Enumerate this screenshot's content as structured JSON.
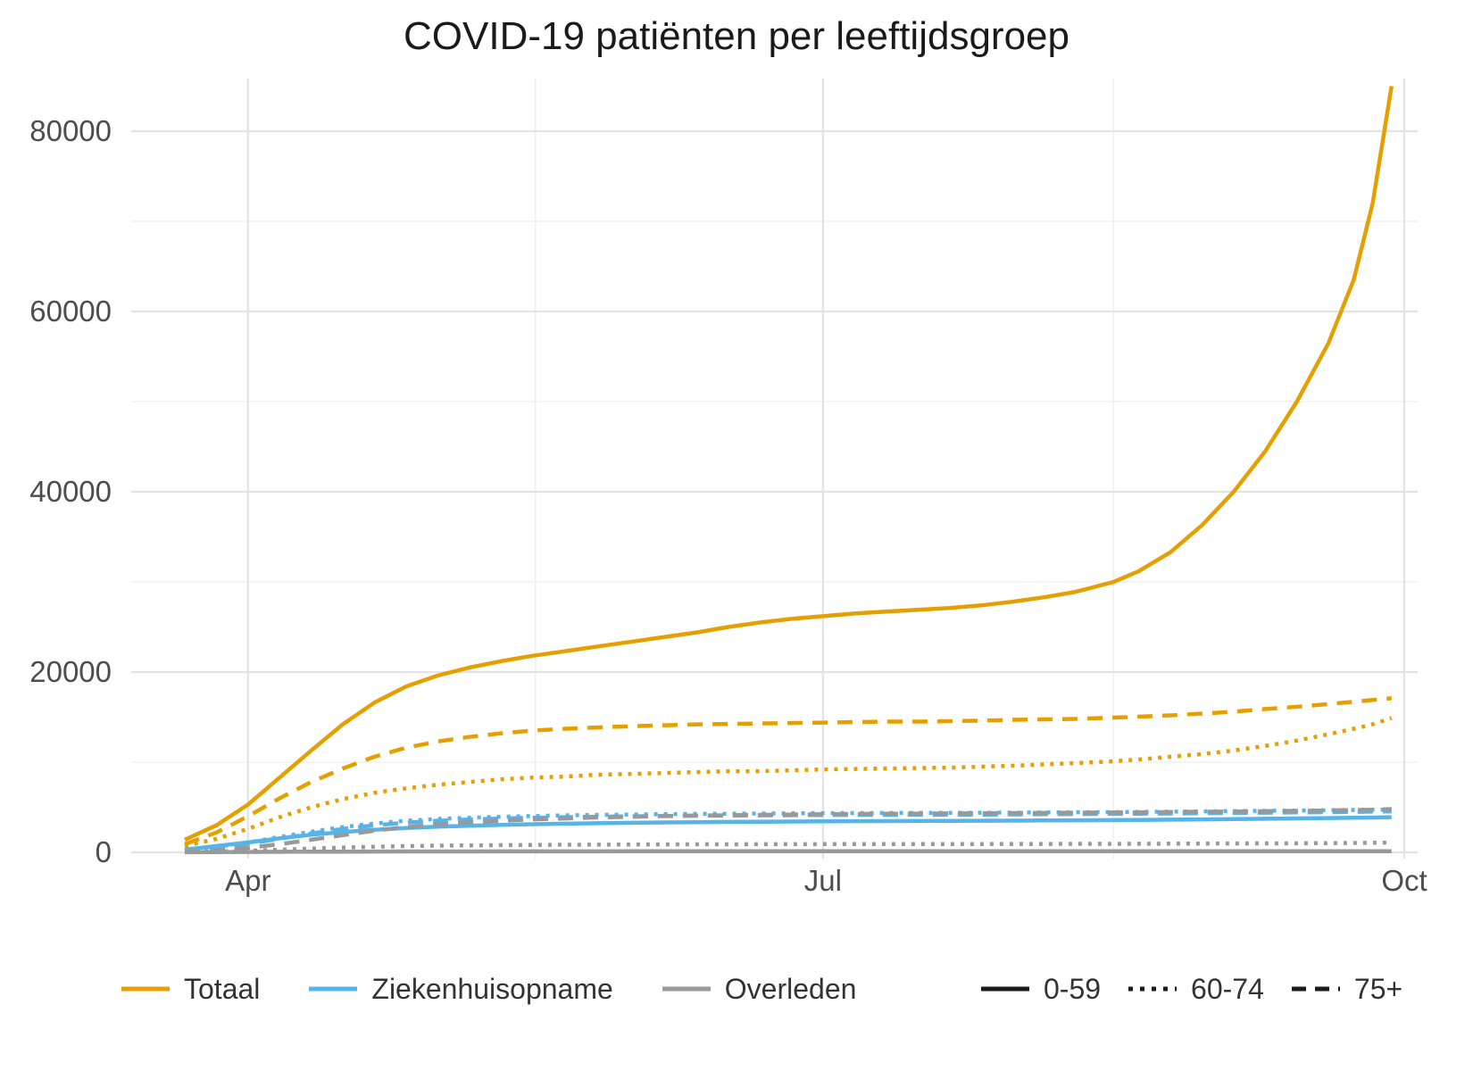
{
  "title": "COVID-19 patiënten per leeftijdsgroep",
  "colors": {
    "totaal": "#E69F00",
    "ziekenhuisopname": "#56B4E9",
    "overleden": "#999999",
    "grid_major": "#E3E3E3",
    "grid_minor": "#F0F0F0",
    "axis_text": "#4D4D4D",
    "title_text": "#1A1A1A",
    "legend_text": "#333333",
    "linetype_key": "#1A1A1A"
  },
  "axes": {
    "y_label": "",
    "x_label": "",
    "y_ticks": [
      {
        "label": "0",
        "value": 0
      },
      {
        "label": "20000",
        "value": 20000
      },
      {
        "label": "40000",
        "value": 40000
      },
      {
        "label": "60000",
        "value": 60000
      },
      {
        "label": "80000",
        "value": 80000
      }
    ],
    "y_minor": [
      10000,
      30000,
      50000,
      70000
    ],
    "x_ticks": [
      {
        "label": "Apr",
        "day": 10
      },
      {
        "label": "Jul",
        "day": 101
      },
      {
        "label": "Oct",
        "day": 193
      }
    ],
    "x_minor_days": [
      55.5,
      147
    ]
  },
  "legend": {
    "color_items": [
      {
        "label": "Totaal",
        "color_key": "totaal"
      },
      {
        "label": "Ziekenhuisopname",
        "color_key": "ziekenhuisopname"
      },
      {
        "label": "Overleden",
        "color_key": "overleden"
      }
    ],
    "linetype_items": [
      {
        "label": "0-59",
        "linetype": "solid"
      },
      {
        "label": "60-74",
        "linetype": "dotted"
      },
      {
        "label": "75+",
        "linetype": "dashed"
      }
    ]
  },
  "chart_data": {
    "type": "line",
    "title": "COVID-19 patiënten per leeftijdsgroep",
    "xlabel": "",
    "ylabel": "",
    "x_unit": "days since 22 Mar 2020",
    "x_axis_months": [
      "Apr",
      "Jul",
      "Oct"
    ],
    "ylim": [
      0,
      86000
    ],
    "grid": true,
    "legend_position": "bottom",
    "days": [
      0,
      5,
      10,
      15,
      20,
      25,
      30,
      35,
      40,
      45,
      50,
      55,
      60,
      65,
      71,
      76,
      81,
      86,
      91,
      96,
      101,
      106,
      111,
      116,
      121,
      126,
      131,
      136,
      141,
      147,
      151,
      156,
      161,
      166,
      171,
      176,
      181,
      185,
      188,
      191
    ],
    "series": [
      {
        "name": "Totaal 0-59",
        "measure": "Totaal",
        "age_group": "0-59",
        "color": "totaal",
        "linetype": "solid",
        "values": [
          1400,
          3000,
          5300,
          8300,
          11300,
          14200,
          16600,
          18400,
          19600,
          20500,
          21200,
          21800,
          22300,
          22800,
          23400,
          23900,
          24400,
          25000,
          25500,
          25900,
          26200,
          26500,
          26700,
          26900,
          27100,
          27400,
          27800,
          28300,
          28900,
          30000,
          31200,
          33300,
          36300,
          40000,
          44500,
          50000,
          56500,
          63500,
          72000,
          85000
        ]
      },
      {
        "name": "Totaal 60-74",
        "measure": "Totaal",
        "age_group": "60-74",
        "color": "totaal",
        "linetype": "dotted",
        "values": [
          700,
          1500,
          2600,
          3900,
          5000,
          5900,
          6600,
          7100,
          7500,
          7800,
          8100,
          8300,
          8400,
          8600,
          8700,
          8800,
          8900,
          9000,
          9000,
          9100,
          9200,
          9250,
          9300,
          9350,
          9400,
          9500,
          9600,
          9750,
          9900,
          10100,
          10300,
          10600,
          10900,
          11300,
          11800,
          12400,
          13100,
          13700,
          14200,
          14900
        ]
      },
      {
        "name": "Totaal 75+",
        "measure": "Totaal",
        "age_group": "75+",
        "color": "totaal",
        "linetype": "dashed",
        "values": [
          900,
          2200,
          4000,
          6000,
          7800,
          9300,
          10600,
          11600,
          12300,
          12800,
          13200,
          13500,
          13700,
          13850,
          14000,
          14100,
          14200,
          14250,
          14300,
          14350,
          14400,
          14450,
          14500,
          14500,
          14550,
          14600,
          14700,
          14750,
          14800,
          14950,
          15050,
          15200,
          15400,
          15600,
          15900,
          16150,
          16450,
          16700,
          16900,
          17100
        ]
      },
      {
        "name": "Ziekenhuisopname 0-59",
        "measure": "Ziekenhuisopname",
        "age_group": "0-59",
        "color": "ziekenhuisopname",
        "linetype": "solid",
        "values": [
          300,
          700,
          1100,
          1550,
          1950,
          2250,
          2500,
          2700,
          2850,
          2950,
          3050,
          3120,
          3180,
          3230,
          3280,
          3320,
          3350,
          3380,
          3400,
          3420,
          3440,
          3460,
          3470,
          3480,
          3490,
          3500,
          3510,
          3530,
          3550,
          3570,
          3590,
          3620,
          3650,
          3690,
          3720,
          3760,
          3800,
          3830,
          3860,
          3900
        ]
      },
      {
        "name": "Ziekenhuisopname 60-74",
        "measure": "Ziekenhuisopname",
        "age_group": "60-74",
        "color": "ziekenhuisopname",
        "linetype": "dotted",
        "values": [
          250,
          600,
          1100,
          1700,
          2300,
          2800,
          3200,
          3500,
          3700,
          3830,
          3950,
          4030,
          4100,
          4150,
          4200,
          4240,
          4270,
          4290,
          4310,
          4330,
          4350,
          4360,
          4370,
          4380,
          4390,
          4400,
          4410,
          4430,
          4450,
          4470,
          4490,
          4510,
          4540,
          4570,
          4600,
          4630,
          4670,
          4700,
          4720,
          4750
        ]
      },
      {
        "name": "Ziekenhuisopname 75+",
        "measure": "Ziekenhuisopname",
        "age_group": "75+",
        "color": "ziekenhuisopname",
        "linetype": "dashed",
        "values": [
          200,
          500,
          950,
          1500,
          2100,
          2600,
          3000,
          3300,
          3500,
          3630,
          3750,
          3830,
          3900,
          3950,
          4000,
          4030,
          4060,
          4080,
          4100,
          4120,
          4140,
          4150,
          4160,
          4170,
          4180,
          4190,
          4210,
          4230,
          4250,
          4270,
          4290,
          4310,
          4340,
          4370,
          4400,
          4430,
          4460,
          4490,
          4510,
          4540
        ]
      },
      {
        "name": "Overleden 0-59",
        "measure": "Overleden",
        "age_group": "0-59",
        "color": "overleden",
        "linetype": "solid",
        "values": [
          10,
          25,
          40,
          55,
          70,
          80,
          90,
          95,
          100,
          103,
          106,
          108,
          110,
          112,
          114,
          115,
          116,
          117,
          118,
          119,
          120,
          120,
          121,
          121,
          122,
          122,
          123,
          123,
          124,
          124,
          125,
          125,
          126,
          126,
          127,
          128,
          128,
          129,
          129,
          130
        ]
      },
      {
        "name": "Overleden 60-74",
        "measure": "Overleden",
        "age_group": "60-74",
        "color": "overleden",
        "linetype": "dotted",
        "values": [
          30,
          90,
          180,
          300,
          420,
          530,
          620,
          690,
          740,
          775,
          800,
          822,
          840,
          855,
          870,
          880,
          888,
          895,
          900,
          905,
          908,
          911,
          914,
          917,
          920,
          924,
          928,
          933,
          938,
          945,
          950,
          958,
          966,
          976,
          988,
          1002,
          1020,
          1040,
          1060,
          1090
        ]
      },
      {
        "name": "Overleden 75+",
        "measure": "Overleden",
        "age_group": "75+",
        "color": "overleden",
        "linetype": "dashed",
        "values": [
          60,
          200,
          500,
          900,
          1400,
          1900,
          2400,
          2800,
          3100,
          3320,
          3500,
          3640,
          3750,
          3860,
          3950,
          4020,
          4080,
          4120,
          4160,
          4200,
          4230,
          4260,
          4280,
          4300,
          4320,
          4340,
          4360,
          4380,
          4400,
          4430,
          4450,
          4470,
          4500,
          4530,
          4560,
          4600,
          4640,
          4680,
          4720,
          4800
        ]
      }
    ]
  }
}
